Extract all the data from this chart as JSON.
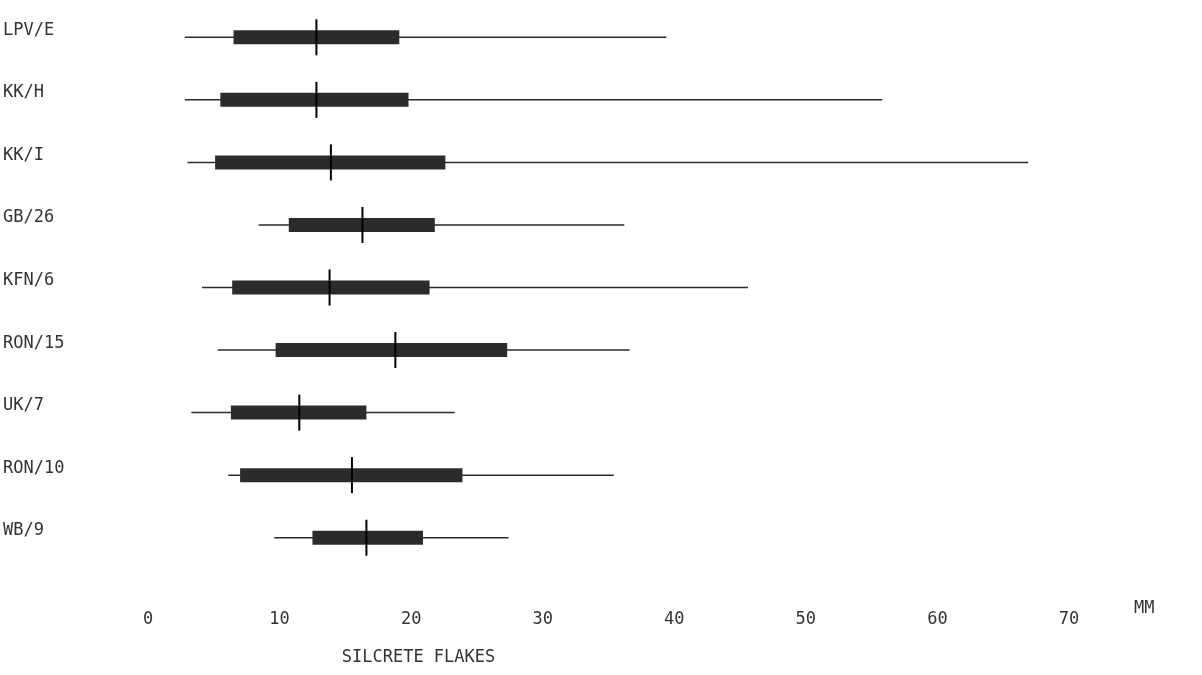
{
  "chart_data": {
    "type": "box",
    "orientation": "horizontal",
    "xlabel": "SILCRETE FLAKES",
    "annotations": [
      "MM"
    ],
    "color": "#2b2b2b",
    "categories": [
      "LPV/E",
      "KK/H",
      "KK/I",
      "GB/26",
      "KFN/6",
      "RON/15",
      "UK/7",
      "RON/10",
      "WB/9"
    ],
    "boxes": [
      {
        "low": 2.8,
        "q1": 6.5,
        "median": 12.8,
        "q3": 19.1,
        "high": 39.4
      },
      {
        "low": 2.8,
        "q1": 5.5,
        "median": 12.8,
        "q3": 19.8,
        "high": 55.8
      },
      {
        "low": 3.0,
        "q1": 5.1,
        "median": 13.9,
        "q3": 22.6,
        "high": 66.9
      },
      {
        "low": 8.4,
        "q1": 10.7,
        "median": 16.3,
        "q3": 21.8,
        "high": 36.2
      },
      {
        "low": 4.1,
        "q1": 6.4,
        "median": 13.8,
        "q3": 21.4,
        "high": 45.6
      },
      {
        "low": 5.3,
        "q1": 9.7,
        "median": 18.8,
        "q3": 27.3,
        "high": 36.6
      },
      {
        "low": 3.3,
        "q1": 6.3,
        "median": 11.5,
        "q3": 16.6,
        "high": 23.3
      },
      {
        "low": 6.1,
        "q1": 7.0,
        "median": 15.5,
        "q3": 23.9,
        "high": 35.4
      },
      {
        "low": 9.6,
        "q1": 12.5,
        "median": 16.6,
        "q3": 20.9,
        "high": 27.4
      }
    ],
    "xlim": [
      0,
      70
    ],
    "xticks": [
      0,
      10,
      20,
      30,
      40,
      50,
      60,
      70
    ],
    "grid": false
  }
}
